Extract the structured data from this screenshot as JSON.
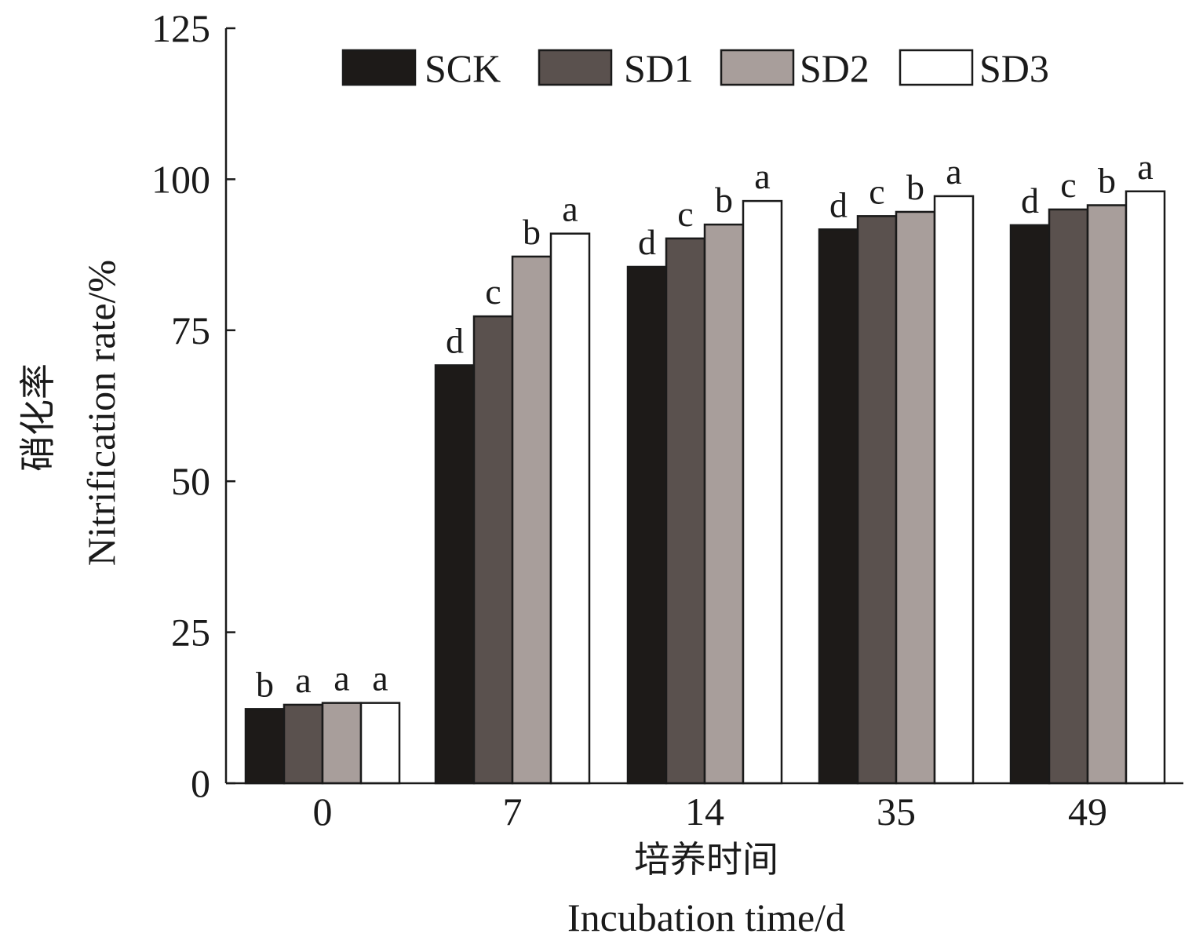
{
  "chart_data": {
    "type": "bar",
    "categories": [
      "0",
      "7",
      "14",
      "35",
      "49"
    ],
    "series": [
      {
        "name": "SCK",
        "color": "#1d1a18",
        "values": [
          12.3,
          69.2,
          85.5,
          91.7,
          92.4
        ],
        "sig": [
          "b",
          "d",
          "d",
          "d",
          "d"
        ]
      },
      {
        "name": "SD1",
        "color": "#5a514e",
        "values": [
          13.0,
          77.3,
          90.2,
          93.9,
          95.0
        ],
        "sig": [
          "a",
          "c",
          "c",
          "c",
          "c"
        ]
      },
      {
        "name": "SD2",
        "color": "#a89e9b",
        "values": [
          13.3,
          87.2,
          92.5,
          94.6,
          95.7
        ],
        "sig": [
          "a",
          "b",
          "b",
          "b",
          "b"
        ]
      },
      {
        "name": "SD3",
        "color": "#ffffff",
        "values": [
          13.3,
          91.0,
          96.4,
          97.2,
          98.0
        ],
        "sig": [
          "a",
          "a",
          "a",
          "a",
          "a"
        ]
      }
    ],
    "ylim": [
      0,
      125
    ],
    "yticks": [
      0,
      25,
      50,
      75,
      100,
      125
    ],
    "ylabel_cn": "硝化率",
    "ylabel_en": "Nitrification rate/%",
    "xlabel_cn": "培养时间",
    "xlabel_en": "Incubation time/d",
    "legend": "top",
    "grid": false
  }
}
